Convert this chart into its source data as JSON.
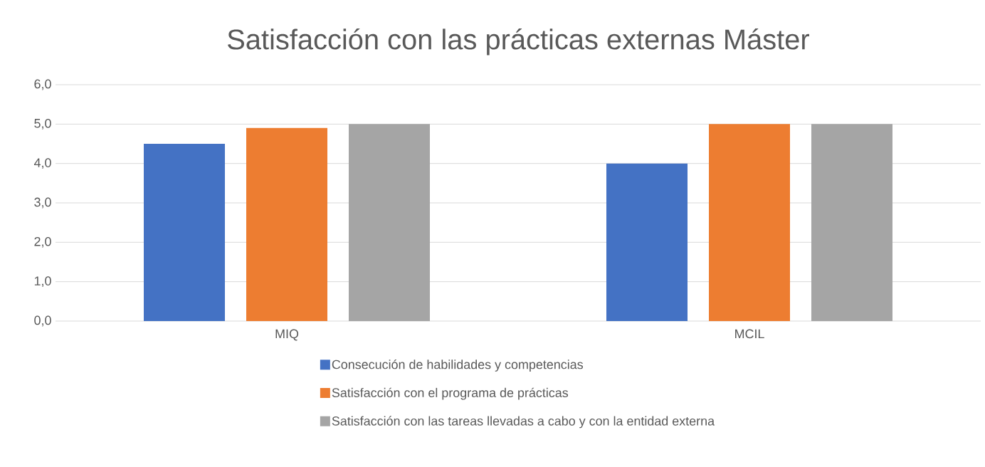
{
  "chart_data": {
    "type": "bar",
    "title": "Satisfacción con las prácticas externas Máster",
    "categories": [
      "MIQ",
      "MCIL"
    ],
    "series": [
      {
        "name": "Consecución de habilidades y competencias",
        "color": "#4472c4",
        "values": [
          4.5,
          4.0
        ]
      },
      {
        "name": "Satisfacción con el programa de prácticas",
        "color": "#ed7d31",
        "values": [
          4.9,
          5.0
        ]
      },
      {
        "name": "Satisfacción con las tareas llevadas a cabo y con la entidad externa",
        "color": "#a5a5a5",
        "values": [
          5.0,
          5.0
        ]
      }
    ],
    "ylim": [
      0,
      6
    ],
    "yticks": [
      {
        "value": 0,
        "label": "0,0"
      },
      {
        "value": 1,
        "label": "1,0"
      },
      {
        "value": 2,
        "label": "2,0"
      },
      {
        "value": 3,
        "label": "3,0"
      },
      {
        "value": 4,
        "label": "4,0"
      },
      {
        "value": 5,
        "label": "5,0"
      },
      {
        "value": 6,
        "label": "6,0"
      }
    ],
    "grid": "y",
    "legend": "bottom"
  }
}
